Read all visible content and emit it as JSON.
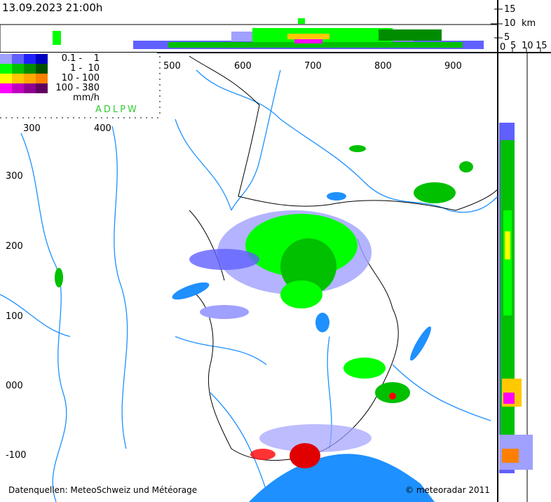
{
  "header": {
    "timestamp": "13.09.2023 21:00h"
  },
  "height_axis": {
    "unit": "km",
    "top_ticks": [
      "15",
      "10",
      "5"
    ],
    "right_ticks": [
      "0",
      "5",
      "10",
      "15"
    ]
  },
  "legend": {
    "rows": [
      {
        "label": "0.1 -    1",
        "colors": [
          "#a0a0ff",
          "#6060ff",
          "#2020ff",
          "#0000c0"
        ]
      },
      {
        "label": "1 -  10",
        "colors": [
          "#00ff00",
          "#00c000",
          "#008c00",
          "#005000"
        ]
      },
      {
        "label": "10 - 100",
        "colors": [
          "#ffff00",
          "#ffc800",
          "#ffa800",
          "#ff8000"
        ]
      },
      {
        "label": "100 - 380",
        "colors": [
          "#ff00ff",
          "#c000c0",
          "#900090",
          "#600060"
        ]
      }
    ],
    "unit": "mm/h",
    "stations": "ADLPW",
    "stations_color": "#33cc33"
  },
  "map": {
    "x_ticks_top": [
      "500",
      "600",
      "700",
      "800",
      "900"
    ],
    "x_ticks_inner": [
      "300",
      "400"
    ],
    "y_ticks": [
      "300",
      "200",
      "100",
      "000",
      "-100"
    ],
    "river_color": "#1e90ff",
    "lake_color": "#1e90ff"
  },
  "footer": {
    "source": "Datenquellen: MeteoSchweiz und Météorage",
    "copyright": "© meteoradar 2011"
  }
}
